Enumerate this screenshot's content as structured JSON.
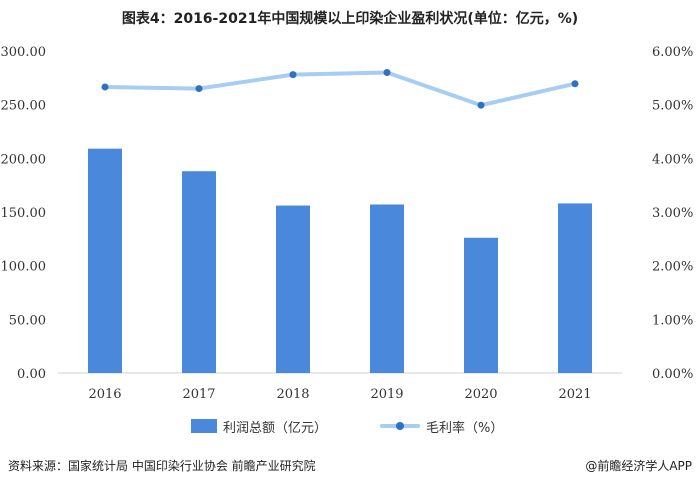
{
  "title": "图表4：2016-2021年中国规模以上印染企业盈利状况(单位：亿元，%)",
  "source": "资料来源：国家统计局 中国印染行业协会 前瞻产业研究院",
  "brand": "@前瞻经济学人APP",
  "colors": {
    "bar": "#4a88dc",
    "line": "#a8cdf2",
    "dot": "#2f6fc4",
    "grid": "#e3e3e3"
  },
  "chart_data": {
    "type": "bar",
    "categories": [
      "2016",
      "2017",
      "2018",
      "2019",
      "2020",
      "2021"
    ],
    "series": [
      {
        "name": "利润总额（亿元）",
        "type": "bar",
        "axis": "left",
        "values": [
          209,
          188,
          156,
          157,
          126,
          158
        ]
      },
      {
        "name": "毛利率（%）",
        "type": "line",
        "axis": "right",
        "values": [
          5.33,
          5.3,
          5.56,
          5.6,
          4.99,
          5.39
        ]
      }
    ],
    "y_left": {
      "ylim": [
        0,
        300
      ],
      "ticks": [
        "0.00",
        "50.00",
        "100.00",
        "150.00",
        "200.00",
        "250.00",
        "300.00"
      ]
    },
    "y_right": {
      "ylim": [
        0,
        6
      ],
      "ticks": [
        "0.00%",
        "1.00%",
        "2.00%",
        "3.00%",
        "4.00%",
        "5.00%",
        "6.00%"
      ]
    },
    "grid": false,
    "legend": "bottom"
  }
}
